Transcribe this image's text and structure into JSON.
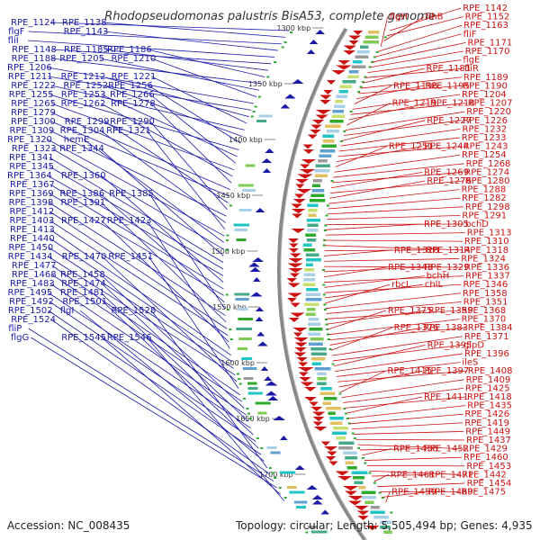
{
  "title": "Rhodopseudomonas palustris BisA53, complete genome",
  "footer": {
    "accession": "Accession: NC_008435",
    "summary": "Topology: circular; Length: 5,505,494 bp; Genes: 4,935"
  },
  "colors": {
    "left_strand": "#1a1aa8",
    "right_strand": "#cc1111",
    "backbone": "#888888",
    "tick": "#33aa33"
  },
  "ticks": [
    "1300 kbp",
    "1350 kbp",
    "1400 kbp",
    "1450 kbp",
    "1500 kbp",
    "1550 kbp",
    "1600 kbp",
    "1650 kbp",
    "1700 kbp"
  ],
  "left_labels": [
    "RPE_1124",
    "RPE_1138",
    "flgF",
    "RPE_1143",
    "fliI",
    "RPE_1148",
    "RPE_1185",
    "RPE_1186",
    "RPE_1188",
    "RPE_1205",
    "RPE_1210",
    "RPE_1206",
    "RPE_1211",
    "RPE_1212",
    "RPE_1221",
    "RPE_1222",
    "RPE_1252",
    "RPE_1256",
    "RPE_1255",
    "RPE_1253",
    "RPE_1266",
    "RPE_1265",
    "RPE_1262",
    "RPE_1278",
    "RPE_1279",
    "RPE_1300",
    "RPE_1299",
    "RPE_1290",
    "RPE_1309",
    "RPE_1304",
    "RPE_1321",
    "RPE_1320",
    "hemE",
    "RPE_1323",
    "RPE_1344",
    "RPE_1341",
    "RPE_1345",
    "RPE_1364",
    "RPE_1360",
    "RPE_1367",
    "RPE_1369",
    "RPE_1386",
    "RPE_1385",
    "RPE_1398",
    "RPE_1391",
    "RPE_1412",
    "RPE_1403",
    "RPE_1427",
    "RPE_1423",
    "RPE_1413",
    "RPE_1440",
    "RPE_1450",
    "RPE_1434",
    "RPE_1470",
    "RPE_1451",
    "RPE_1477",
    "RPE_1468",
    "RPE_1458",
    "RPE_1483",
    "RPE_1474",
    "RPE_1495",
    "RPE_1481",
    "RPE_1492",
    "RPE_1501",
    "RPE_1502",
    "flgI",
    "RPE_1528",
    "RPE_1524",
    "fliP",
    "flgG",
    "RPE_1545",
    "RPE_1546"
  ],
  "right_labels": [
    "RPE_1142",
    "RPE_1152",
    "flhB",
    "flgH",
    "RPE_1163",
    "fliF",
    "RPE_1171",
    "RPE_1170",
    "flgE",
    "fliR",
    "RPE_1181",
    "RPE_1189",
    "RPE_1190",
    "RPE_1195",
    "RPE_1196",
    "RPE_1204",
    "RPE_1207",
    "RPE_1218",
    "RPE_1219",
    "RPE_1220",
    "RPE_1226",
    "RPE_1227",
    "RPE_1232",
    "RPE_1233",
    "RPE_1243",
    "RPE_1244",
    "RPE_1251",
    "RPE_1254",
    "RPE_1268",
    "RPE_1274",
    "RPE_1269",
    "RPE_1280",
    "RPE_1276",
    "RPE_1288",
    "RPE_1282",
    "RPE_1298",
    "RPE_1291",
    "bchD",
    "RPE_1305",
    "RPE_1313",
    "RPE_1310",
    "RPE_1318",
    "RPE_1314",
    "RPE_1328",
    "RPE_1324",
    "RPE_1336",
    "RPE_1329",
    "RPE_1343",
    "RPE_1337",
    "bchH",
    "RPE_1346",
    "chlL",
    "rbcL",
    "RPE_1358",
    "RPE_1351",
    "RPE_1368",
    "RPE_1359",
    "RPE_1375",
    "RPE_1370",
    "RPE_1384",
    "RPE_1383",
    "RPE_1376",
    "RPE_1371",
    "glpD",
    "RPE_1395",
    "RPE_1396",
    "ileS",
    "RPE_1408",
    "RPE_1397",
    "RPE_1415",
    "RPE_1409",
    "RPE_1425",
    "RPE_1418",
    "RPE_1411",
    "RPE_1435",
    "RPE_1426",
    "RPE_1419",
    "RPE_1449",
    "RPE_1437",
    "RPE_1429",
    "RPE_1452",
    "RPE_1438",
    "RPE_1460",
    "RPE_1453",
    "RPE_1442",
    "RPE_1471",
    "RPE_1461",
    "RPE_1454",
    "RPE_1475",
    "RPE_1469",
    "RPE_1459"
  ]
}
